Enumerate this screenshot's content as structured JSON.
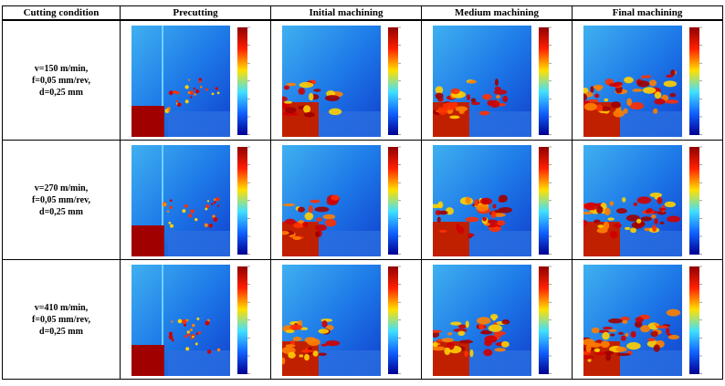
{
  "table": {
    "header": [
      "Cutting condition",
      "Precutting",
      "Initial machining",
      "Medium machining",
      "Final machining"
    ],
    "rows": [
      {
        "condition": [
          "v=150 m/min,",
          "f=0,05 mm/rev,",
          "d=0,25 mm"
        ]
      },
      {
        "condition": [
          "v=270 m/min,",
          "f=0,05 mm/rev,",
          "d=0,25 mm"
        ]
      },
      {
        "condition": [
          "v=410 m/min,",
          "f=0,05 mm/rev,",
          "d=0,25 mm"
        ]
      }
    ]
  }
}
